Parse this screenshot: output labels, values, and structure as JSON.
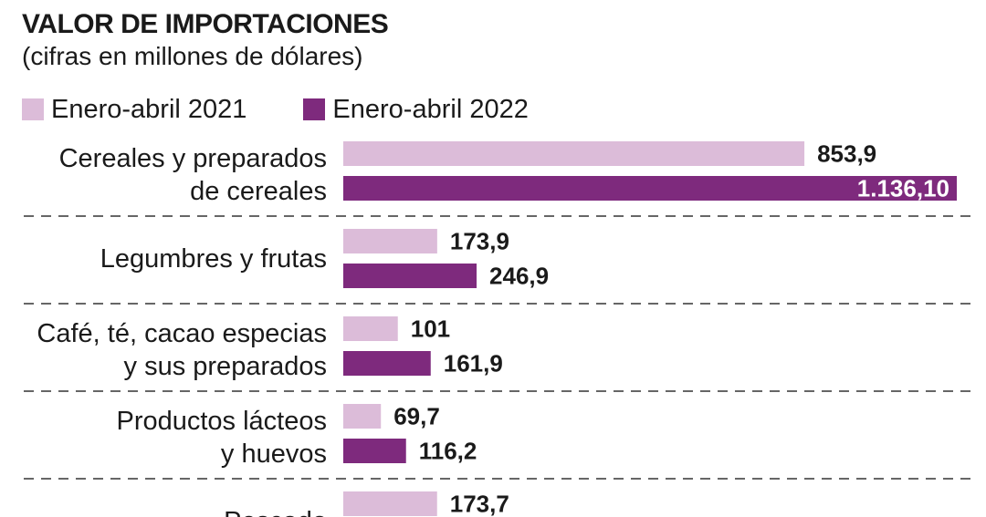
{
  "chart_data": {
    "type": "bar",
    "orientation": "horizontal",
    "title": "VALOR DE IMPORTACIONES",
    "subtitle": "(cifras en millones de dólares)",
    "categories": [
      [
        "Cereales y preparados",
        "de cereales"
      ],
      [
        "Legumbres y frutas"
      ],
      [
        "Café, té, cacao especias",
        "y sus preparados"
      ],
      [
        "Productos lácteos",
        "y huevos"
      ],
      [
        "Pescado"
      ]
    ],
    "series": [
      {
        "name": "Enero-abril 2021",
        "color": "#dcbcd9",
        "values": [
          853.9,
          173.9,
          101,
          69.7,
          173.7
        ],
        "labels": [
          "853,9",
          "173,9",
          "101",
          "69,7",
          "173,7"
        ]
      },
      {
        "name": "Enero-abril 2022",
        "color": "#7e2a7d",
        "values": [
          1136.1,
          246.9,
          161.9,
          116.2,
          null
        ],
        "labels": [
          "1.136,10",
          "246,9",
          "161,9",
          "116,2",
          ""
        ]
      }
    ],
    "xlim": [
      0,
      1136.1
    ],
    "grid": false,
    "legend": "top-left"
  }
}
